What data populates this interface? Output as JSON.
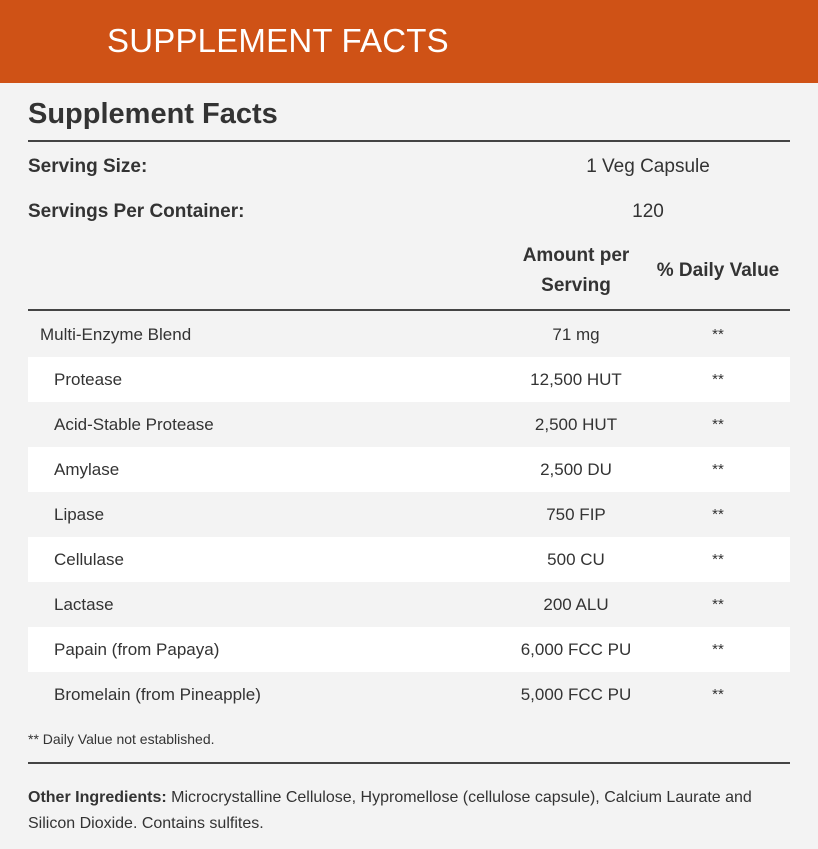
{
  "banner": {
    "title": "SUPPLEMENT FACTS"
  },
  "panel": {
    "title": "Supplement Facts",
    "serving_size_label": "Serving Size:",
    "serving_size_value": "1 Veg Capsule",
    "servings_label": "Servings Per Container:",
    "servings_value": "120",
    "col_amount_line1": "Amount per",
    "col_amount_line2": "Serving",
    "col_daily": "% Daily Value",
    "rows": [
      {
        "name": "Multi-Enzyme Blend",
        "amount": "71 mg",
        "dv": "**"
      },
      {
        "name": "Protease",
        "amount": "12,500 HUT",
        "dv": "**"
      },
      {
        "name": "Acid-Stable Protease",
        "amount": "2,500 HUT",
        "dv": "**"
      },
      {
        "name": "Amylase",
        "amount": "2,500 DU",
        "dv": "**"
      },
      {
        "name": "Lipase",
        "amount": "750 FIP",
        "dv": "**"
      },
      {
        "name": "Cellulase",
        "amount": "500 CU",
        "dv": "**"
      },
      {
        "name": "Lactase",
        "amount": "200 ALU",
        "dv": "**"
      },
      {
        "name": "Papain (from Papaya)",
        "amount": "6,000 FCC PU",
        "dv": "**"
      },
      {
        "name": "Bromelain (from Pineapple)",
        "amount": "5,000 FCC PU",
        "dv": "**"
      }
    ],
    "footnote": "** Daily Value not established.",
    "other_label": "Other Ingredients:",
    "other_text": "Microcrystalline Cellulose, Hypromellose (cellulose capsule), Calcium Laurate and Silicon Dioxide. Contains sulfites."
  },
  "colors": {
    "banner": "#cf5216",
    "background": "#f3f3f3",
    "alt_row": "#ffffff"
  }
}
